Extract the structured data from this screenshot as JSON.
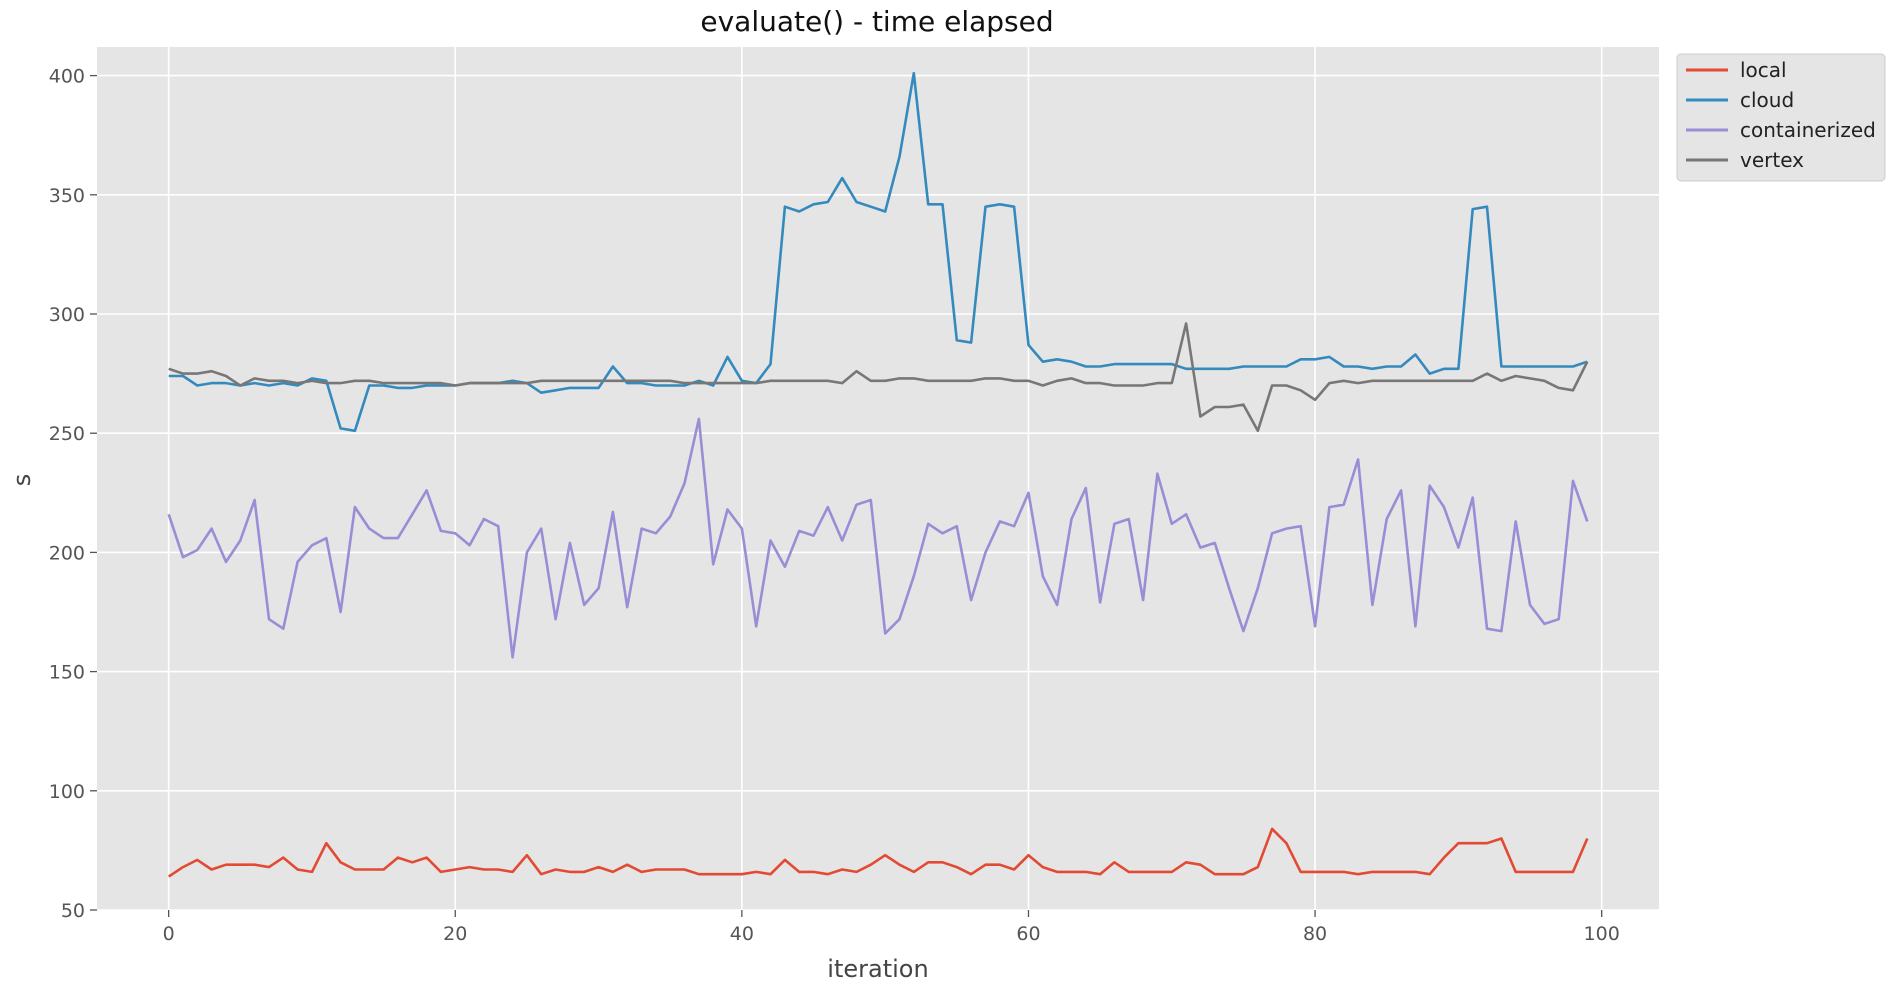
{
  "chart_data": {
    "type": "line",
    "title": "evaluate() - time elapsed",
    "xlabel": "iteration",
    "ylabel": "s",
    "xlim": [
      -5,
      104
    ],
    "ylim": [
      50,
      412
    ],
    "xticks": [
      0,
      20,
      40,
      60,
      80,
      100
    ],
    "yticks": [
      50,
      100,
      150,
      200,
      250,
      300,
      350,
      400
    ],
    "grid": true,
    "legend_position": "upper right, outside plot",
    "background": "#e5e5e5",
    "series": [
      {
        "name": "local",
        "color": "#e24a33",
        "values": [
          64,
          68,
          71,
          67,
          69,
          69,
          69,
          68,
          72,
          67,
          66,
          78,
          70,
          67,
          67,
          67,
          72,
          70,
          72,
          66,
          67,
          68,
          67,
          67,
          66,
          73,
          65,
          67,
          66,
          66,
          68,
          66,
          69,
          66,
          67,
          67,
          67,
          65,
          65,
          65,
          65,
          66,
          65,
          71,
          66,
          66,
          65,
          67,
          66,
          69,
          73,
          69,
          66,
          70,
          70,
          68,
          65,
          69,
          69,
          67,
          73,
          68,
          66,
          66,
          66,
          65,
          70,
          66,
          66,
          66,
          66,
          70,
          69,
          65,
          65,
          65,
          68,
          84,
          78,
          66,
          66,
          66,
          66,
          65,
          66,
          66,
          66,
          66,
          65,
          72,
          78,
          78,
          78,
          80,
          66,
          66,
          66,
          66,
          66,
          80
        ]
      },
      {
        "name": "cloud",
        "color": "#348abd",
        "values": [
          274,
          274,
          270,
          271,
          271,
          270,
          271,
          270,
          271,
          270,
          273,
          272,
          252,
          251,
          270,
          270,
          269,
          269,
          270,
          270,
          270,
          271,
          271,
          271,
          272,
          271,
          267,
          268,
          269,
          269,
          269,
          278,
          271,
          271,
          270,
          270,
          270,
          272,
          270,
          282,
          272,
          271,
          279,
          345,
          343,
          346,
          347,
          357,
          347,
          345,
          343,
          366,
          401,
          346,
          346,
          289,
          288,
          345,
          346,
          345,
          287,
          280,
          281,
          280,
          278,
          278,
          279,
          279,
          279,
          279,
          279,
          277,
          277,
          277,
          277,
          278,
          278,
          278,
          278,
          281,
          281,
          282,
          278,
          278,
          277,
          278,
          278,
          283,
          275,
          277,
          277,
          344,
          345,
          278,
          278,
          278,
          278,
          278,
          278,
          280
        ]
      },
      {
        "name": "containerized",
        "color": "#988ed5",
        "values": [
          216,
          198,
          201,
          210,
          196,
          205,
          222,
          172,
          168,
          196,
          203,
          206,
          175,
          219,
          210,
          206,
          206,
          216,
          226,
          209,
          208,
          203,
          214,
          211,
          156,
          200,
          210,
          172,
          204,
          178,
          185,
          217,
          177,
          210,
          208,
          215,
          229,
          256,
          195,
          218,
          210,
          169,
          205,
          194,
          209,
          207,
          219,
          205,
          220,
          222,
          166,
          172,
          190,
          212,
          208,
          211,
          180,
          200,
          213,
          211,
          225,
          190,
          178,
          214,
          227,
          179,
          212,
          214,
          180,
          233,
          212,
          216,
          202,
          204,
          185,
          167,
          185,
          208,
          210,
          211,
          169,
          219,
          220,
          239,
          178,
          214,
          226,
          169,
          228,
          219,
          202,
          223,
          168,
          167,
          213,
          178,
          170,
          172,
          230,
          213
        ]
      },
      {
        "name": "vertex",
        "color": "#777777",
        "values": [
          277,
          275,
          275,
          276,
          274,
          270,
          273,
          272,
          272,
          271,
          272,
          271,
          271,
          272,
          272,
          271,
          271,
          271,
          271,
          271,
          270,
          271,
          271,
          271,
          271,
          271,
          272,
          272,
          272,
          272,
          272,
          272,
          272,
          272,
          272,
          272,
          271,
          271,
          271,
          271,
          271,
          271,
          272,
          272,
          272,
          272,
          272,
          271,
          276,
          272,
          272,
          273,
          273,
          272,
          272,
          272,
          272,
          273,
          273,
          272,
          272,
          270,
          272,
          273,
          271,
          271,
          270,
          270,
          270,
          271,
          271,
          296,
          257,
          261,
          261,
          262,
          251,
          270,
          270,
          268,
          264,
          271,
          272,
          271,
          272,
          272,
          272,
          272,
          272,
          272,
          272,
          272,
          275,
          272,
          274,
          273,
          272,
          269,
          268,
          280
        ]
      }
    ]
  }
}
